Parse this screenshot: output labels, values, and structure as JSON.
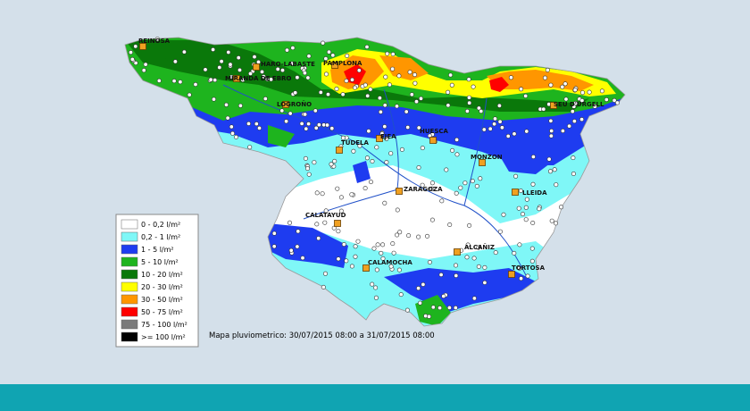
{
  "legend": {
    "items": [
      {
        "label": "0 - 0,2 l/m²",
        "color": "#ffffff"
      },
      {
        "label": "0,2 - 1 l/m²",
        "color": "#7ff7f7"
      },
      {
        "label": "1 - 5 l/m²",
        "color": "#1e3cf0"
      },
      {
        "label": "5 - 10 l/m²",
        "color": "#1eb41e"
      },
      {
        "label": "10 - 20 l/m²",
        "color": "#0a780a"
      },
      {
        "label": "20 - 30 l/m²",
        "color": "#ffff00"
      },
      {
        "label": "30 - 50 l/m²",
        "color": "#ff9600"
      },
      {
        "label": "50 - 75 l/m²",
        "color": "#ff0000"
      },
      {
        "label": "75 - 100 l/m²",
        "color": "#7a7a7a"
      },
      {
        "label": ">= 100 l/m²",
        "color": "#000000"
      }
    ]
  },
  "caption": "Mapa pluviometrico: 30/07/2015 08:00 a 31/07/2015 08:00",
  "cities": [
    {
      "name": "REINOSA"
    },
    {
      "name": "HARO-LABASTE"
    },
    {
      "name": "MIRANDA DE EBRO"
    },
    {
      "name": "PAMPLONA"
    },
    {
      "name": "LOGROÑO"
    },
    {
      "name": "SEU D'URGELL"
    },
    {
      "name": "TUDELA"
    },
    {
      "name": "EJEA"
    },
    {
      "name": "HUESCA"
    },
    {
      "name": "MONZON"
    },
    {
      "name": "LLEIDA"
    },
    {
      "name": "ZARAGOZA"
    },
    {
      "name": "CALATAYUD"
    },
    {
      "name": "ALCAÑIZ"
    },
    {
      "name": "CALAMOCHA"
    },
    {
      "name": "TORTOSA"
    }
  ]
}
